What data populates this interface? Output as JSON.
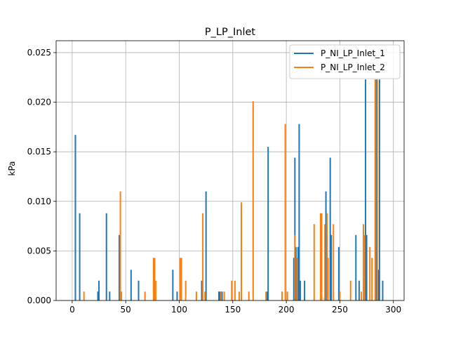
{
  "chart_data": {
    "type": "line",
    "title": "P_LP_Inlet",
    "xlabel": "",
    "ylabel": "kPa",
    "xlim": [
      -15,
      310
    ],
    "ylim": [
      0,
      0.0262
    ],
    "x_ticks": [
      0,
      50,
      100,
      150,
      200,
      250,
      300
    ],
    "x_tick_labels": [
      "0",
      "50",
      "100",
      "150",
      "200",
      "250",
      "300"
    ],
    "y_ticks": [
      0.0,
      0.005,
      0.01,
      0.015,
      0.02,
      0.025
    ],
    "y_tick_labels": [
      "0.000",
      "0.005",
      "0.010",
      "0.015",
      "0.020",
      "0.025"
    ],
    "grid": true,
    "legend_position": "top-right",
    "series": [
      {
        "name": "P_NI_LP_Inlet_1",
        "color": "#1f77b4",
        "spikes": [
          [
            3,
            0.0167
          ],
          [
            7,
            0.0088
          ],
          [
            24,
            0.0009
          ],
          [
            25,
            0.002
          ],
          [
            32,
            0.0088
          ],
          [
            35,
            0.0009
          ],
          [
            44,
            0.0066
          ],
          [
            55,
            0.0031
          ],
          [
            62,
            0.002
          ],
          [
            94,
            0.0031
          ],
          [
            98,
            0.0009
          ],
          [
            121,
            0.002
          ],
          [
            125,
            0.011
          ],
          [
            137,
            0.0009
          ],
          [
            138,
            0.0009
          ],
          [
            140,
            0.0009
          ],
          [
            182,
            0.0009
          ],
          [
            183,
            0.0155
          ],
          [
            207,
            0.0043
          ],
          [
            208,
            0.0144
          ],
          [
            209,
            0.0054
          ],
          [
            211,
            0.0054
          ],
          [
            212,
            0.0178
          ],
          [
            213,
            0.002
          ],
          [
            217,
            0.002
          ],
          [
            237,
            0.011
          ],
          [
            238,
            0.0066
          ],
          [
            241,
            0.0144
          ],
          [
            242,
            0.0066
          ],
          [
            249,
            0.0054
          ],
          [
            265,
            0.0066
          ],
          [
            268,
            0.002
          ],
          [
            274,
            0.0223
          ],
          [
            275,
            0.0066
          ],
          [
            284,
            0.0223
          ],
          [
            286,
            0.0031
          ],
          [
            287,
            0.0223
          ],
          [
            290,
            0.002
          ]
        ]
      },
      {
        "name": "P_NI_LP_Inlet_2",
        "color": "#ff7f0e",
        "spikes": [
          [
            11,
            0.0009
          ],
          [
            45,
            0.011
          ],
          [
            46,
            0.0009
          ],
          [
            68,
            0.0009
          ],
          [
            76,
            0.0043
          ],
          [
            77,
            0.0043
          ],
          [
            78,
            0.002
          ],
          [
            101,
            0.0043
          ],
          [
            102,
            0.0043
          ],
          [
            106,
            0.002
          ],
          [
            116,
            0.0009
          ],
          [
            122,
            0.0088
          ],
          [
            124,
            0.0009
          ],
          [
            139,
            0.0009
          ],
          [
            142,
            0.0009
          ],
          [
            149,
            0.002
          ],
          [
            152,
            0.002
          ],
          [
            156,
            0.0009
          ],
          [
            158,
            0.0099
          ],
          [
            165,
            0.0009
          ],
          [
            169,
            0.0201
          ],
          [
            181,
            0.0009
          ],
          [
            196,
            0.0009
          ],
          [
            199,
            0.0178
          ],
          [
            201,
            0.0009
          ],
          [
            208,
            0.0066
          ],
          [
            210,
            0.0043
          ],
          [
            226,
            0.0077
          ],
          [
            232,
            0.0088
          ],
          [
            233,
            0.0088
          ],
          [
            236,
            0.0077
          ],
          [
            238,
            0.0088
          ],
          [
            239,
            0.0043
          ],
          [
            244,
            0.0077
          ],
          [
            250,
            0.0009
          ],
          [
            260,
            0.002
          ],
          [
            270,
            0.0009
          ],
          [
            272,
            0.0077
          ],
          [
            273,
            0.0066
          ],
          [
            278,
            0.0054
          ],
          [
            280,
            0.0043
          ],
          [
            283,
            0.0223
          ],
          [
            285,
            0.0223
          ]
        ]
      }
    ]
  }
}
